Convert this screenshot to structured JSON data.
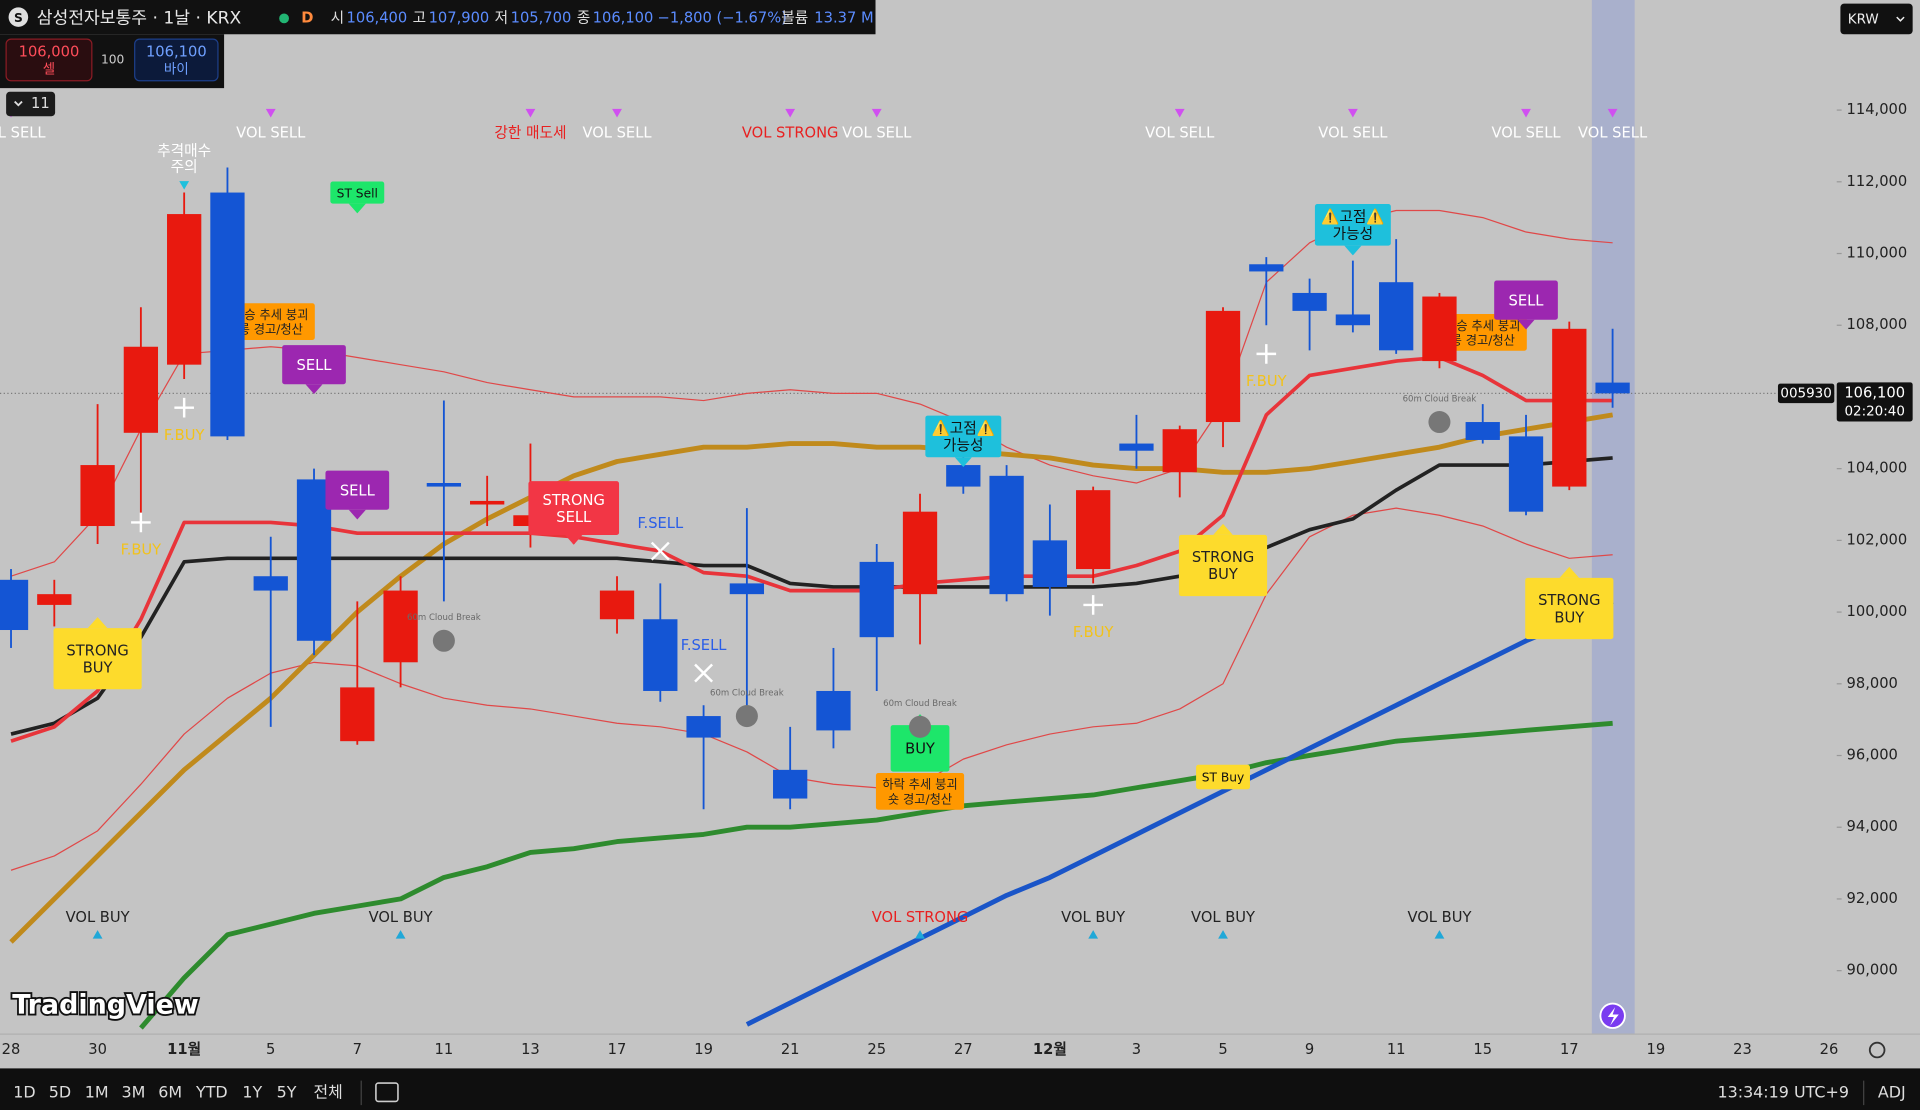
{
  "header": {
    "badge": "S",
    "title": "삼성전자보통주 · 1날 · KRX",
    "interval": "D",
    "open_label": "시",
    "open": "106,400",
    "high_label": "고",
    "high": "107,900",
    "low_label": "저",
    "low": "105,700",
    "close_label": "종",
    "close": "106,100",
    "change": "−1,800 (−1.67%)",
    "volume_label": "볼륨",
    "volume": "13.37 M",
    "sell_price": "106,000",
    "sell_label": "셀",
    "spread": "100",
    "buy_price": "106,100",
    "buy_label": "바이",
    "indicators_count": "11",
    "currency": "KRW"
  },
  "logo": "TradingView",
  "toolbar": {
    "ranges": [
      "1D",
      "5D",
      "1M",
      "3M",
      "6M",
      "YTD",
      "1Y",
      "5Y",
      "전체"
    ],
    "clock": "13:34:19 UTC+9",
    "adjust": "ADJ"
  },
  "chart_data": {
    "type": "candlestick",
    "categories": [
      "28",
      null,
      "30",
      null,
      "11월",
      null,
      "5",
      null,
      "7",
      null,
      "11",
      null,
      "13",
      null,
      "17",
      null,
      "19",
      null,
      "21",
      null,
      "25",
      null,
      "27",
      null,
      "12월",
      null,
      "3",
      null,
      "5",
      null,
      "9",
      null,
      "11",
      null,
      "15",
      null,
      "17",
      null,
      "19",
      null,
      "23",
      null,
      "26"
    ],
    "open": [
      100900,
      100200,
      102400,
      105000,
      106900,
      111700,
      101000,
      103700,
      96400,
      98600,
      103600,
      103000,
      102400,
      102200,
      99800,
      99800,
      97100,
      100800,
      95600,
      97800,
      101400,
      100500,
      104100,
      103800,
      102000,
      101200,
      104700,
      103900,
      105300,
      109700,
      108900,
      108300,
      109200,
      107000,
      105300,
      104900,
      103500,
      106400,
      null,
      null,
      null,
      null,
      null
    ],
    "high": [
      101200,
      100900,
      105800,
      108500,
      111700,
      112400,
      102100,
      104000,
      100300,
      101000,
      105900,
      103800,
      104700,
      102700,
      101000,
      100800,
      97400,
      102900,
      96800,
      99000,
      101900,
      103300,
      105400,
      104100,
      103000,
      103500,
      105500,
      105200,
      108500,
      109900,
      109300,
      109800,
      110400,
      108900,
      105800,
      105500,
      108100,
      107900,
      null,
      null,
      null,
      null,
      null
    ],
    "low": [
      99000,
      99600,
      101900,
      102400,
      106500,
      104800,
      96800,
      98800,
      96300,
      97900,
      100300,
      102400,
      101800,
      101900,
      99400,
      97500,
      94500,
      96900,
      94500,
      96200,
      97800,
      99100,
      103300,
      100300,
      99900,
      100800,
      104000,
      103200,
      104600,
      108000,
      107300,
      107800,
      107200,
      106800,
      104700,
      102700,
      103400,
      105700,
      null,
      null,
      null,
      null,
      null
    ],
    "close": [
      99500,
      100500,
      104100,
      107400,
      111100,
      104900,
      100600,
      99200,
      97900,
      100600,
      103500,
      103100,
      102700,
      102400,
      100600,
      97800,
      96500,
      100500,
      94800,
      96700,
      99300,
      102800,
      103500,
      100500,
      100700,
      103400,
      104500,
      105100,
      108400,
      109500,
      108400,
      108000,
      107300,
      108800,
      104800,
      102800,
      107900,
      106100,
      null,
      null,
      null,
      null,
      null
    ],
    "up_color": "#e8190f",
    "down_color": "#1455d4",
    "overlays": [
      {
        "color": "#e04848",
        "width": 1,
        "values": [
          101000,
          101400,
          102700,
          105100,
          107200,
          107300,
          107400,
          107300,
          107100,
          106900,
          106700,
          106400,
          106200,
          106000,
          106000,
          106000,
          105900,
          106100,
          106200,
          106100,
          106100,
          105800,
          105300,
          104600,
          104100,
          103800,
          103600,
          104000,
          105800,
          109200,
          110300,
          110900,
          111200,
          111200,
          111000,
          110600,
          110400,
          110300,
          null,
          null,
          null,
          null,
          null
        ]
      },
      {
        "color": "#e04848",
        "width": 1,
        "values": [
          92800,
          93200,
          93900,
          95200,
          96600,
          97600,
          98300,
          98600,
          98500,
          98000,
          97600,
          97400,
          97300,
          97100,
          96900,
          96800,
          96600,
          96100,
          95400,
          95200,
          95100,
          95200,
          95900,
          96300,
          96600,
          96800,
          96900,
          97300,
          98000,
          100500,
          102100,
          102700,
          102900,
          102700,
          102400,
          101900,
          101500,
          101600,
          null,
          null,
          null,
          null,
          null
        ]
      },
      {
        "color": "#2e8b2e",
        "width": 4,
        "values": [
          null,
          null,
          null,
          88400,
          89800,
          91000,
          91300,
          91600,
          91800,
          92000,
          92600,
          92900,
          93300,
          93400,
          93600,
          93700,
          93800,
          94000,
          94000,
          94100,
          94200,
          94400,
          94600,
          94700,
          94800,
          94900,
          95100,
          95300,
          95500,
          95800,
          96000,
          96200,
          96400,
          96500,
          96600,
          96700,
          96800,
          96900,
          null,
          null,
          null,
          null,
          null
        ]
      },
      {
        "color": "#1a55c8",
        "width": 4,
        "values": [
          null,
          null,
          null,
          null,
          null,
          null,
          null,
          null,
          null,
          null,
          null,
          null,
          null,
          null,
          null,
          null,
          null,
          88500,
          89100,
          89700,
          90300,
          90900,
          91500,
          92100,
          92600,
          93200,
          93800,
          94400,
          95000,
          95600,
          96200,
          96800,
          97400,
          98000,
          98600,
          99200,
          99700,
          100300,
          null,
          null,
          null,
          null,
          null
        ]
      },
      {
        "color": "#c08a1c",
        "width": 4,
        "values": [
          90800,
          92000,
          93200,
          94400,
          95600,
          96600,
          97600,
          98800,
          100000,
          101000,
          101900,
          102600,
          103200,
          103800,
          104200,
          104400,
          104600,
          104600,
          104700,
          104700,
          104600,
          104600,
          104500,
          104400,
          104300,
          104100,
          104000,
          104000,
          103900,
          103900,
          104000,
          104200,
          104400,
          104600,
          104900,
          105100,
          105300,
          105500,
          null,
          null,
          null,
          null,
          null
        ]
      },
      {
        "color": "#222222",
        "width": 3,
        "values": [
          96600,
          96900,
          97600,
          99300,
          101400,
          101500,
          101500,
          101500,
          101500,
          101500,
          101500,
          101500,
          101500,
          101500,
          101500,
          101400,
          101300,
          101300,
          100800,
          100700,
          100700,
          100700,
          100700,
          100700,
          100700,
          100700,
          100800,
          101000,
          101300,
          101800,
          102300,
          102600,
          103400,
          104100,
          104100,
          104100,
          104200,
          104300,
          null,
          null,
          null,
          null,
          null
        ]
      },
      {
        "color": "#e8343a",
        "width": 3,
        "values": [
          96400,
          96800,
          97800,
          99800,
          102500,
          102500,
          102500,
          102400,
          102200,
          102200,
          102200,
          102200,
          102200,
          102100,
          101900,
          101700,
          101100,
          101000,
          100600,
          100600,
          100600,
          100800,
          100900,
          101000,
          101000,
          101000,
          101300,
          101700,
          102700,
          105500,
          106600,
          106800,
          107000,
          107100,
          106600,
          105900,
          105900,
          105900,
          null,
          null,
          null,
          null,
          null
        ]
      }
    ],
    "ylim": [
      88230,
      117070
    ],
    "yticks": [
      {
        "value": 90000,
        "label": "90,000"
      },
      {
        "value": 92000,
        "label": "92,000"
      },
      {
        "value": 94000,
        "label": "94,000"
      },
      {
        "value": 96000,
        "label": "96,000"
      },
      {
        "value": 98000,
        "label": "98,000"
      },
      {
        "value": 100000,
        "label": "100,000"
      },
      {
        "value": 102000,
        "label": "102,000"
      },
      {
        "value": 104000,
        "label": "104,000"
      },
      {
        "value": 106000,
        "label": "106,000"
      },
      {
        "value": 108000,
        "label": "108,000"
      },
      {
        "value": 110000,
        "label": "110,000"
      },
      {
        "value": 112000,
        "label": "112,000"
      },
      {
        "value": 114000,
        "label": "114,000"
      }
    ],
    "grid": false,
    "last_price": {
      "symbol": "005930",
      "value": 106100,
      "label": "106,100",
      "countdown": "02:20:40"
    },
    "top_markers": [
      {
        "text": "VOL SELL",
        "at": 0,
        "color": "#ffffff"
      },
      {
        "text": "VOL SELL",
        "at": 6,
        "color": "#ffffff"
      },
      {
        "text": "강한 매도세",
        "at": 12,
        "color": "#e82020"
      },
      {
        "text": "VOL SELL",
        "at": 14,
        "color": "#ffffff"
      },
      {
        "text": "VOL STRONG",
        "at": 18,
        "color": "#e82020"
      },
      {
        "text": "VOL SELL",
        "at": 20,
        "color": "#ffffff"
      },
      {
        "text": "VOL SELL",
        "at": 27,
        "color": "#ffffff"
      },
      {
        "text": "VOL SELL",
        "at": 31,
        "color": "#ffffff"
      },
      {
        "text": "VOL SELL",
        "at": 35,
        "color": "#ffffff"
      },
      {
        "text": "VOL SELL",
        "at": 37,
        "color": "#ffffff"
      }
    ],
    "bottom_markers": [
      {
        "text": "VOL BUY",
        "at": 2,
        "color": "#222222"
      },
      {
        "text": "VOL BUY",
        "at": 9,
        "color": "#222222"
      },
      {
        "text": "VOL STRONG",
        "at": 21,
        "color": "#e82020"
      },
      {
        "text": "VOL BUY",
        "at": 25,
        "color": "#222222"
      },
      {
        "text": "VOL BUY",
        "at": 28,
        "color": "#222222"
      },
      {
        "text": "VOL BUY",
        "at": 33,
        "color": "#222222"
      }
    ],
    "signals": [
      {
        "kind": "trend-long",
        "text": [
          "상승 추세 붕괴",
          "롱 경고/청산"
        ],
        "at": 6,
        "y": 108100
      },
      {
        "kind": "trend-long",
        "text": [
          "상승 추세 붕괴",
          "롱 경고/청산"
        ],
        "at": 34,
        "y": 107800
      },
      {
        "kind": "trend-short",
        "text": [
          "하락 추세 붕괴",
          "숏 경고/청산"
        ],
        "at": 21,
        "y": 95000
      },
      {
        "kind": "chase",
        "text": [
          "추격매수",
          "주의"
        ],
        "at": 4,
        "y": 112600
      },
      {
        "kind": "st-sell",
        "text": [
          "ST Sell"
        ],
        "at": 8,
        "y": 111700
      },
      {
        "kind": "sell",
        "text": [
          "SELL"
        ],
        "at": 7,
        "y": 106900
      },
      {
        "kind": "sell",
        "text": [
          "SELL"
        ],
        "at": 8,
        "y": 103400
      },
      {
        "kind": "sell",
        "text": [
          "SELL"
        ],
        "at": 35,
        "y": 108700
      },
      {
        "kind": "strong-sell",
        "text": [
          "STRONG",
          "SELL"
        ],
        "at": 13,
        "y": 102900
      },
      {
        "kind": "peak",
        "text": [
          "⚠️고점⚠️",
          "가능성"
        ],
        "at": 31,
        "y": 110800
      },
      {
        "kind": "peak",
        "text": [
          "⚠️고점⚠️",
          "가능성"
        ],
        "at": 22,
        "y": 104900
      },
      {
        "kind": "strong-buy",
        "text": [
          "STRONG",
          "BUY"
        ],
        "at": 2,
        "y": 98700
      },
      {
        "kind": "strong-buy",
        "text": [
          "STRONG",
          "BUY"
        ],
        "at": 28,
        "y": 101300
      },
      {
        "kind": "strong-buy",
        "text": [
          "STRONG",
          "BUY"
        ],
        "at": 36,
        "y": 100100
      },
      {
        "kind": "buy",
        "text": [
          "BUY"
        ],
        "at": 21,
        "y": 96200
      },
      {
        "kind": "st-buy",
        "text": [
          "ST Buy"
        ],
        "at": 28,
        "y": 95400
      },
      {
        "kind": "fbuy",
        "text": [
          "F.BUY"
        ],
        "at": 4,
        "y": 105700
      },
      {
        "kind": "fbuy",
        "text": [
          "F.BUY"
        ],
        "at": 3,
        "y": 102500
      },
      {
        "kind": "fbuy",
        "text": [
          "F.BUY"
        ],
        "at": 29,
        "y": 107200
      },
      {
        "kind": "fbuy",
        "text": [
          "F.BUY"
        ],
        "at": 25,
        "y": 100200
      },
      {
        "kind": "fsell",
        "text": [
          "F.SELL"
        ],
        "at": 15,
        "y": 101700
      },
      {
        "kind": "fsell",
        "text": [
          "F.SELL"
        ],
        "at": 16,
        "y": 98300
      },
      {
        "kind": "cloud",
        "text": [
          "60m Cloud Break"
        ],
        "at": 10,
        "y": 99200
      },
      {
        "kind": "cloud",
        "text": [
          "60m Cloud Break"
        ],
        "at": 17,
        "y": 97100
      },
      {
        "kind": "cloud",
        "text": [
          "60m Cloud Break"
        ],
        "at": 21,
        "y": 96800
      },
      {
        "kind": "cloud",
        "text": [
          "60m Cloud Break"
        ],
        "at": 33,
        "y": 105300
      }
    ]
  }
}
